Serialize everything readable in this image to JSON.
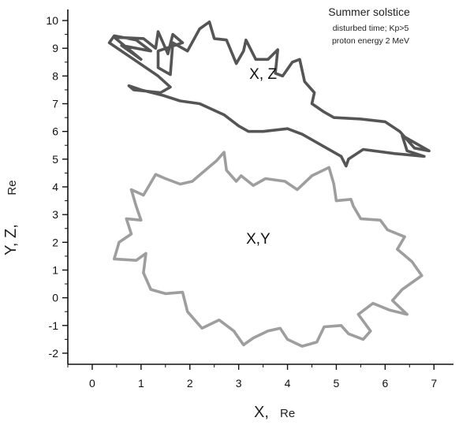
{
  "chart_data": {
    "type": "line",
    "annotation": {
      "title": "Summer solstice",
      "lines": [
        "disturbed time; Kp>5",
        "proton energy 2 MeV"
      ]
    },
    "xlabel": "X,",
    "xlabel_unit": "Re",
    "ylabel": "Y, Z,",
    "ylabel_unit": "Re",
    "xlim": [
      -0.5,
      7.4
    ],
    "ylim": [
      -2.4,
      10.4
    ],
    "x_ticks": [
      0,
      1,
      2,
      3,
      4,
      5,
      6,
      7
    ],
    "y_ticks": [
      -2,
      -1,
      0,
      1,
      2,
      3,
      4,
      5,
      6,
      7,
      8,
      9,
      10
    ],
    "grid": false,
    "series": [
      {
        "name": "X, Z",
        "color": "#555555",
        "label_at": [
          3.5,
          7.9
        ],
        "points": [
          [
            0.35,
            9.2
          ],
          [
            0.45,
            9.45
          ],
          [
            0.9,
            9.3
          ],
          [
            1.2,
            8.9
          ],
          [
            0.6,
            9.1
          ],
          [
            1.0,
            8.6
          ],
          [
            0.45,
            9.4
          ],
          [
            1.05,
            9.35
          ],
          [
            1.3,
            9.0
          ],
          [
            1.35,
            9.6
          ],
          [
            1.55,
            8.8
          ],
          [
            1.65,
            9.5
          ],
          [
            1.85,
            9.2
          ],
          [
            1.35,
            8.9
          ],
          [
            1.35,
            8.3
          ],
          [
            1.6,
            8.05
          ],
          [
            1.65,
            9.2
          ],
          [
            1.95,
            8.9
          ],
          [
            2.2,
            9.7
          ],
          [
            2.4,
            9.95
          ],
          [
            2.5,
            9.35
          ],
          [
            2.75,
            9.3
          ],
          [
            2.95,
            8.45
          ],
          [
            3.1,
            8.9
          ],
          [
            3.15,
            9.3
          ],
          [
            3.35,
            8.6
          ],
          [
            3.6,
            8.6
          ],
          [
            3.8,
            8.95
          ],
          [
            3.75,
            8.1
          ],
          [
            3.9,
            8.0
          ],
          [
            4.1,
            8.5
          ],
          [
            4.25,
            8.6
          ],
          [
            4.35,
            7.8
          ],
          [
            4.55,
            7.4
          ],
          [
            4.5,
            7.0
          ],
          [
            4.75,
            6.7
          ],
          [
            4.95,
            6.5
          ],
          [
            5.5,
            6.45
          ],
          [
            6.0,
            6.35
          ],
          [
            6.3,
            6.0
          ],
          [
            6.6,
            5.4
          ],
          [
            6.9,
            5.3
          ],
          [
            6.35,
            5.85
          ],
          [
            6.45,
            5.3
          ],
          [
            6.8,
            5.1
          ],
          [
            6.2,
            5.2
          ],
          [
            5.55,
            5.35
          ],
          [
            5.25,
            5.0
          ],
          [
            5.2,
            4.75
          ],
          [
            5.1,
            5.1
          ],
          [
            4.8,
            5.4
          ],
          [
            4.3,
            5.9
          ],
          [
            4.0,
            6.1
          ],
          [
            3.5,
            6.0
          ],
          [
            3.2,
            6.0
          ],
          [
            3.0,
            6.2
          ],
          [
            2.7,
            6.6
          ],
          [
            2.2,
            7.0
          ],
          [
            1.8,
            7.1
          ],
          [
            1.45,
            7.3
          ],
          [
            1.0,
            7.5
          ],
          [
            0.75,
            7.65
          ],
          [
            0.85,
            7.5
          ],
          [
            1.4,
            7.4
          ],
          [
            1.6,
            7.6
          ],
          [
            1.35,
            8.0
          ],
          [
            0.85,
            8.6
          ],
          [
            0.35,
            9.2
          ]
        ]
      },
      {
        "name": "X,Y",
        "color": "#9e9e9e",
        "label_at": [
          3.4,
          1.95
        ],
        "points": [
          [
            0.45,
            1.4
          ],
          [
            0.9,
            1.35
          ],
          [
            1.1,
            1.6
          ],
          [
            1.05,
            0.9
          ],
          [
            1.15,
            0.5
          ],
          [
            1.2,
            0.3
          ],
          [
            1.5,
            0.15
          ],
          [
            1.85,
            0.2
          ],
          [
            1.95,
            -0.5
          ],
          [
            2.15,
            -0.9
          ],
          [
            2.25,
            -1.1
          ],
          [
            2.6,
            -0.8
          ],
          [
            2.9,
            -1.2
          ],
          [
            3.1,
            -1.7
          ],
          [
            3.3,
            -1.45
          ],
          [
            3.6,
            -1.2
          ],
          [
            3.85,
            -1.1
          ],
          [
            4.0,
            -1.5
          ],
          [
            4.3,
            -1.75
          ],
          [
            4.6,
            -1.6
          ],
          [
            4.75,
            -1.05
          ],
          [
            5.1,
            -1.0
          ],
          [
            5.25,
            -1.3
          ],
          [
            5.55,
            -1.5
          ],
          [
            5.7,
            -1.2
          ],
          [
            5.45,
            -0.6
          ],
          [
            5.75,
            -0.2
          ],
          [
            6.1,
            -0.45
          ],
          [
            6.45,
            -0.6
          ],
          [
            6.15,
            -0.1
          ],
          [
            6.35,
            0.3
          ],
          [
            6.75,
            0.8
          ],
          [
            6.55,
            1.3
          ],
          [
            6.25,
            1.75
          ],
          [
            6.4,
            2.2
          ],
          [
            6.05,
            2.45
          ],
          [
            5.9,
            2.8
          ],
          [
            5.5,
            2.85
          ],
          [
            5.35,
            3.3
          ],
          [
            5.3,
            3.55
          ],
          [
            5.0,
            3.5
          ],
          [
            4.95,
            4.1
          ],
          [
            4.85,
            4.7
          ],
          [
            4.5,
            4.4
          ],
          [
            4.2,
            3.9
          ],
          [
            3.95,
            4.2
          ],
          [
            3.55,
            4.3
          ],
          [
            3.3,
            4.05
          ],
          [
            3.05,
            4.4
          ],
          [
            2.95,
            4.2
          ],
          [
            2.75,
            4.6
          ],
          [
            2.7,
            5.25
          ],
          [
            2.55,
            4.95
          ],
          [
            2.35,
            4.65
          ],
          [
            2.05,
            4.2
          ],
          [
            1.8,
            4.1
          ],
          [
            1.5,
            4.3
          ],
          [
            1.3,
            4.45
          ],
          [
            1.15,
            4.0
          ],
          [
            1.05,
            3.7
          ],
          [
            0.8,
            3.9
          ],
          [
            0.9,
            3.3
          ],
          [
            1.0,
            2.8
          ],
          [
            0.7,
            2.85
          ],
          [
            0.8,
            2.3
          ],
          [
            0.55,
            2.0
          ],
          [
            0.45,
            1.4
          ]
        ]
      }
    ]
  }
}
